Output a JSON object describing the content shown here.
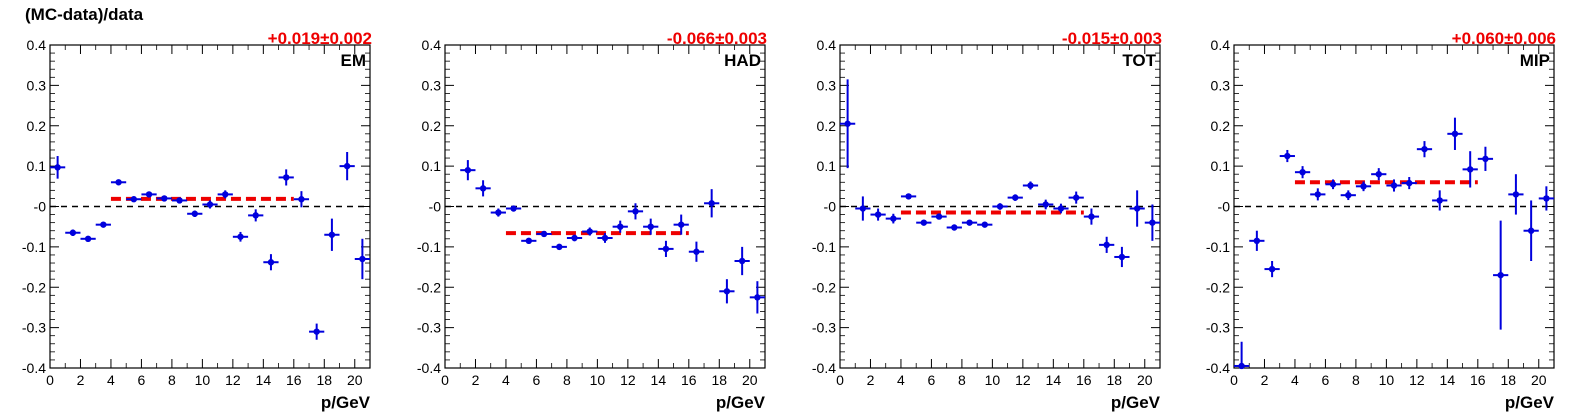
{
  "figure": {
    "ylabel": "(MC-data)/data"
  },
  "chart_data": [
    {
      "type": "scatter",
      "label": "EM",
      "fit_text": "+0.019±0.002",
      "fit_value": 0.019,
      "fit_range": [
        4,
        16
      ],
      "xlabel": "p/GeV",
      "xlim": [
        0,
        21
      ],
      "ylim": [
        -0.4,
        0.4
      ],
      "xticks": [
        "0",
        "2",
        "4",
        "6",
        "8",
        "10",
        "12",
        "14",
        "16",
        "18",
        "20"
      ],
      "yticks": [
        "-0.4",
        "-0.3",
        "-0.2",
        "-0.1",
        "-0",
        "0.1",
        "0.2",
        "0.3",
        "0.4"
      ],
      "points": [
        {
          "x": 0.5,
          "y": 0.097,
          "err": 0.028
        },
        {
          "x": 1.5,
          "y": -0.065,
          "err": 0.008
        },
        {
          "x": 2.5,
          "y": -0.08,
          "err": 0.007
        },
        {
          "x": 3.5,
          "y": -0.045,
          "err": 0.006
        },
        {
          "x": 4.5,
          "y": 0.06,
          "err": 0.005
        },
        {
          "x": 5.5,
          "y": 0.018,
          "err": 0.005
        },
        {
          "x": 6.5,
          "y": 0.03,
          "err": 0.006
        },
        {
          "x": 7.5,
          "y": 0.02,
          "err": 0.006
        },
        {
          "x": 8.5,
          "y": 0.015,
          "err": 0.007
        },
        {
          "x": 9.5,
          "y": -0.018,
          "err": 0.008
        },
        {
          "x": 10.5,
          "y": 0.005,
          "err": 0.01
        },
        {
          "x": 11.5,
          "y": 0.03,
          "err": 0.01
        },
        {
          "x": 12.5,
          "y": -0.075,
          "err": 0.012
        },
        {
          "x": 13.5,
          "y": -0.022,
          "err": 0.015
        },
        {
          "x": 14.5,
          "y": -0.138,
          "err": 0.02
        },
        {
          "x": 15.5,
          "y": 0.072,
          "err": 0.02
        },
        {
          "x": 16.5,
          "y": 0.018,
          "err": 0.02
        },
        {
          "x": 17.5,
          "y": -0.31,
          "err": 0.02
        },
        {
          "x": 18.5,
          "y": -0.07,
          "err": 0.04
        },
        {
          "x": 19.5,
          "y": 0.1,
          "err": 0.035
        },
        {
          "x": 20.5,
          "y": -0.13,
          "err": 0.05
        }
      ]
    },
    {
      "type": "scatter",
      "label": "HAD",
      "fit_text": "-0.066±0.003",
      "fit_value": -0.066,
      "fit_range": [
        4,
        16
      ],
      "xlabel": "p/GeV",
      "xlim": [
        0,
        21
      ],
      "ylim": [
        -0.4,
        0.4
      ],
      "xticks": [
        "0",
        "2",
        "4",
        "6",
        "8",
        "10",
        "12",
        "14",
        "16",
        "18",
        "20"
      ],
      "yticks": [
        "-0.4",
        "-0.3",
        "-0.2",
        "-0.1",
        "-0",
        "0.1",
        "0.2",
        "0.3",
        "0.4"
      ],
      "points": [
        {
          "x": 1.5,
          "y": 0.09,
          "err": 0.025
        },
        {
          "x": 2.5,
          "y": 0.045,
          "err": 0.02
        },
        {
          "x": 3.5,
          "y": -0.015,
          "err": 0.01
        },
        {
          "x": 4.5,
          "y": -0.005,
          "err": 0.007
        },
        {
          "x": 5.5,
          "y": -0.085,
          "err": 0.007
        },
        {
          "x": 6.5,
          "y": -0.068,
          "err": 0.006
        },
        {
          "x": 7.5,
          "y": -0.1,
          "err": 0.006
        },
        {
          "x": 8.5,
          "y": -0.078,
          "err": 0.008
        },
        {
          "x": 9.5,
          "y": -0.062,
          "err": 0.01
        },
        {
          "x": 10.5,
          "y": -0.078,
          "err": 0.012
        },
        {
          "x": 11.5,
          "y": -0.05,
          "err": 0.015
        },
        {
          "x": 12.5,
          "y": -0.012,
          "err": 0.02
        },
        {
          "x": 13.5,
          "y": -0.05,
          "err": 0.02
        },
        {
          "x": 14.5,
          "y": -0.105,
          "err": 0.02
        },
        {
          "x": 15.5,
          "y": -0.045,
          "err": 0.025
        },
        {
          "x": 16.5,
          "y": -0.112,
          "err": 0.025
        },
        {
          "x": 17.5,
          "y": 0.008,
          "err": 0.035
        },
        {
          "x": 18.5,
          "y": -0.21,
          "err": 0.03
        },
        {
          "x": 19.5,
          "y": -0.135,
          "err": 0.035
        },
        {
          "x": 20.5,
          "y": -0.225,
          "err": 0.04
        }
      ]
    },
    {
      "type": "scatter",
      "label": "TOT",
      "fit_text": "-0.015±0.003",
      "fit_value": -0.015,
      "fit_range": [
        4,
        16
      ],
      "xlabel": "p/GeV",
      "xlim": [
        0,
        21
      ],
      "ylim": [
        -0.4,
        0.4
      ],
      "xticks": [
        "0",
        "2",
        "4",
        "6",
        "8",
        "10",
        "12",
        "14",
        "16",
        "18",
        "20"
      ],
      "yticks": [
        "-0.4",
        "-0.3",
        "-0.2",
        "-0.1",
        "-0",
        "0.1",
        "0.2",
        "0.3",
        "0.4"
      ],
      "points": [
        {
          "x": 0.5,
          "y": 0.205,
          "err": 0.11
        },
        {
          "x": 1.5,
          "y": -0.005,
          "err": 0.03
        },
        {
          "x": 2.5,
          "y": -0.02,
          "err": 0.015
        },
        {
          "x": 3.5,
          "y": -0.03,
          "err": 0.012
        },
        {
          "x": 4.5,
          "y": 0.025,
          "err": 0.006
        },
        {
          "x": 5.5,
          "y": -0.04,
          "err": 0.005
        },
        {
          "x": 6.5,
          "y": -0.025,
          "err": 0.005
        },
        {
          "x": 7.5,
          "y": -0.052,
          "err": 0.005
        },
        {
          "x": 8.5,
          "y": -0.04,
          "err": 0.006
        },
        {
          "x": 9.5,
          "y": -0.045,
          "err": 0.007
        },
        {
          "x": 10.5,
          "y": 0.0,
          "err": 0.008
        },
        {
          "x": 11.5,
          "y": 0.022,
          "err": 0.008
        },
        {
          "x": 12.5,
          "y": 0.052,
          "err": 0.01
        },
        {
          "x": 13.5,
          "y": 0.005,
          "err": 0.012
        },
        {
          "x": 14.5,
          "y": -0.005,
          "err": 0.012
        },
        {
          "x": 15.5,
          "y": 0.022,
          "err": 0.015
        },
        {
          "x": 16.5,
          "y": -0.025,
          "err": 0.02
        },
        {
          "x": 17.5,
          "y": -0.095,
          "err": 0.02
        },
        {
          "x": 18.5,
          "y": -0.125,
          "err": 0.025
        },
        {
          "x": 19.5,
          "y": -0.005,
          "err": 0.045
        },
        {
          "x": 20.5,
          "y": -0.04,
          "err": 0.045
        }
      ]
    },
    {
      "type": "scatter",
      "label": "MIP",
      "fit_text": "+0.060±0.006",
      "fit_value": 0.06,
      "fit_range": [
        4,
        16
      ],
      "xlabel": "p/GeV",
      "xlim": [
        0,
        21
      ],
      "ylim": [
        -0.4,
        0.4
      ],
      "xticks": [
        "0",
        "2",
        "4",
        "6",
        "8",
        "10",
        "12",
        "14",
        "16",
        "18",
        "20"
      ],
      "yticks": [
        "-0.4",
        "-0.3",
        "-0.2",
        "-0.1",
        "-0",
        "0.1",
        "0.2",
        "0.3",
        "0.4"
      ],
      "points": [
        {
          "x": 0.5,
          "y": -0.395,
          "err": 0.06
        },
        {
          "x": 1.5,
          "y": -0.085,
          "err": 0.025
        },
        {
          "x": 2.5,
          "y": -0.155,
          "err": 0.02
        },
        {
          "x": 3.5,
          "y": 0.125,
          "err": 0.015
        },
        {
          "x": 4.5,
          "y": 0.085,
          "err": 0.015
        },
        {
          "x": 5.5,
          "y": 0.03,
          "err": 0.015
        },
        {
          "x": 6.5,
          "y": 0.055,
          "err": 0.012
        },
        {
          "x": 7.5,
          "y": 0.028,
          "err": 0.012
        },
        {
          "x": 8.5,
          "y": 0.05,
          "err": 0.012
        },
        {
          "x": 9.5,
          "y": 0.08,
          "err": 0.015
        },
        {
          "x": 10.5,
          "y": 0.052,
          "err": 0.015
        },
        {
          "x": 11.5,
          "y": 0.058,
          "err": 0.015
        },
        {
          "x": 12.5,
          "y": 0.142,
          "err": 0.02
        },
        {
          "x": 13.5,
          "y": 0.015,
          "err": 0.025
        },
        {
          "x": 14.5,
          "y": 0.18,
          "err": 0.04
        },
        {
          "x": 15.5,
          "y": 0.092,
          "err": 0.045
        },
        {
          "x": 16.5,
          "y": 0.118,
          "err": 0.03
        },
        {
          "x": 17.5,
          "y": -0.17,
          "err": 0.135
        },
        {
          "x": 18.5,
          "y": 0.03,
          "err": 0.05
        },
        {
          "x": 19.5,
          "y": -0.06,
          "err": 0.075
        },
        {
          "x": 20.5,
          "y": 0.02,
          "err": 0.03
        }
      ]
    }
  ]
}
